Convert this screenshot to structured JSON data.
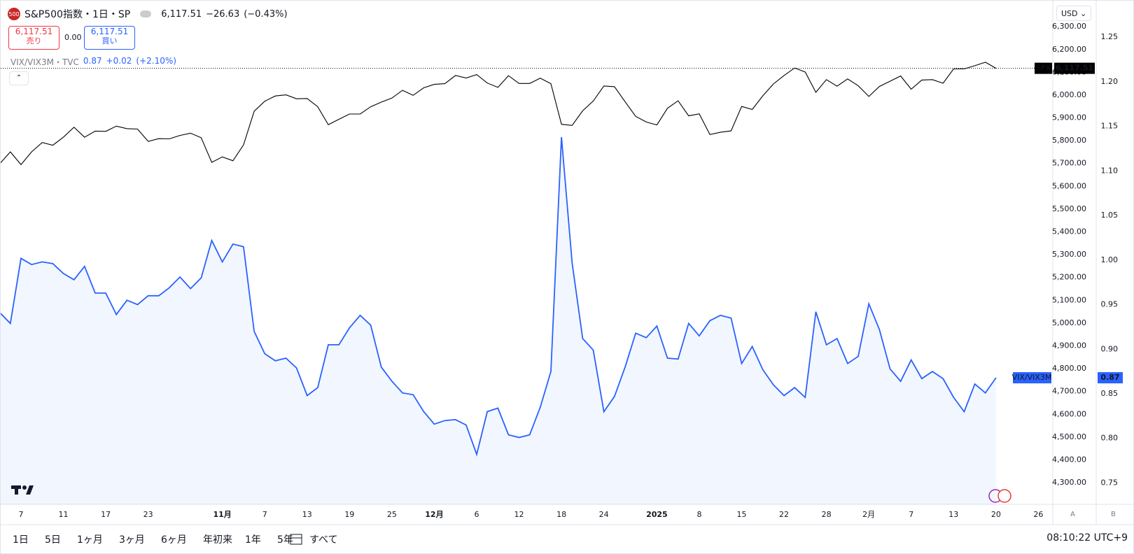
{
  "toolbar": {
    "symbol": "S&P500指数・1日・SP",
    "logo": "500",
    "price": "6,117.51",
    "change": "−26.63",
    "change_pct": "(−0.43%)",
    "sell_price": "6,117.51",
    "sell": "売り",
    "spread": "0.00",
    "buy_price": "6,117.51",
    "buy": "買い",
    "compare_symbol": "VIX/VIX3M・TVC",
    "compare_price": "0.87",
    "compare_change": "+0.02",
    "compare_change_pct": "(+2.10%)",
    "currency": "USD",
    "pane_a": "A",
    "pane_b": "B",
    "ranges": [
      "1日",
      "5日",
      "1ヶ月",
      "3ヶ月",
      "6ヶ月",
      "年初来",
      "1年",
      "5年",
      "すべて"
    ],
    "clock": "08:10:22 UTC+9"
  },
  "chart_data": {
    "type": "line",
    "categories": [
      null,
      null,
      "7",
      null,
      null,
      null,
      "11",
      null,
      null,
      null,
      "17",
      null,
      null,
      null,
      "23",
      null,
      null,
      null,
      null,
      null,
      null,
      "11月",
      null,
      null,
      null,
      "7",
      null,
      null,
      null,
      "13",
      null,
      null,
      null,
      "19",
      null,
      null,
      null,
      "25",
      null,
      null,
      null,
      "12月",
      null,
      null,
      null,
      "6",
      null,
      null,
      null,
      "12",
      null,
      null,
      null,
      "18",
      null,
      null,
      null,
      "24",
      null,
      null,
      null,
      null,
      "2025",
      null,
      null,
      null,
      "8",
      null,
      null,
      null,
      "15",
      null,
      null,
      null,
      "22",
      null,
      null,
      null,
      "28",
      null,
      null,
      null,
      "2月",
      null,
      null,
      null,
      "7",
      null,
      null,
      null,
      "13",
      null,
      null,
      null,
      "20",
      null,
      null,
      null,
      "26"
    ],
    "series": [
      {
        "name": "SPX",
        "color": "#000000",
        "last_label": "6,117.51",
        "values": [
          5699,
          5751,
          5695,
          5751,
          5792,
          5780,
          5815,
          5859,
          5815,
          5842,
          5841,
          5864,
          5853,
          5851,
          5797,
          5809,
          5808,
          5823,
          5833,
          5813,
          5705,
          5729,
          5712,
          5782,
          5929,
          5973,
          5996,
          6001,
          5984,
          5985,
          5949,
          5870,
          5894,
          5917,
          5917,
          5949,
          5969,
          5987,
          6021,
          5999,
          6032,
          6047,
          6050,
          6086,
          6075,
          6090,
          6053,
          6034,
          6085,
          6051,
          6051,
          6074,
          6050,
          5872,
          5867,
          5931,
          5974,
          6040,
          6037,
          5971,
          5907,
          5882,
          5869,
          5942,
          5975,
          5909,
          5918,
          5827,
          5837,
          5843,
          5950,
          5937,
          5997,
          6049,
          6086,
          6119,
          6101,
          6012,
          6068,
          6039,
          6071,
          6041,
          5994,
          6038,
          6061,
          6084,
          6026,
          6066,
          6068,
          6052,
          6115,
          6115,
          6129,
          6144,
          6117.51,
          null,
          null,
          null,
          null
        ]
      },
      {
        "name": "VIX/VIX3M",
        "color": "#2962ff",
        "axis": "y2",
        "last_label": "0.87",
        "values": [
          0.941,
          0.929,
          1.002,
          0.995,
          0.998,
          0.996,
          0.985,
          0.978,
          0.993,
          0.963,
          0.963,
          0.939,
          0.955,
          0.95,
          0.96,
          0.96,
          0.969,
          0.981,
          0.968,
          0.98,
          1.022,
          0.998,
          1.018,
          1.015,
          0.92,
          0.895,
          0.887,
          0.89,
          0.879,
          0.848,
          0.857,
          0.905,
          0.905,
          0.924,
          0.938,
          0.927,
          0.88,
          0.864,
          0.851,
          0.849,
          0.83,
          0.816,
          0.82,
          0.821,
          0.815,
          0.782,
          0.83,
          0.834,
          0.804,
          0.801,
          0.804,
          0.835,
          0.875,
          1.138,
          0.997,
          0.912,
          0.899,
          0.83,
          0.847,
          0.88,
          0.918,
          0.913,
          0.926,
          0.89,
          0.889,
          0.929,
          0.915,
          0.932,
          0.938,
          0.935,
          0.884,
          0.903,
          0.877,
          0.86,
          0.848,
          0.857,
          0.846,
          0.942,
          0.905,
          0.912,
          0.884,
          0.892,
          0.951,
          0.922,
          0.878,
          0.864,
          0.888,
          0.867,
          0.875,
          0.867,
          0.846,
          0.83,
          0.861,
          0.851,
          0.868,
          null,
          null,
          null,
          null
        ]
      }
    ],
    "ylim": [
      4205,
      6414
    ],
    "yticks": [
      {
        "value": 4300,
        "label": "4,300.00"
      },
      {
        "value": 4400,
        "label": "4,400.00"
      },
      {
        "value": 4500,
        "label": "4,500.00"
      },
      {
        "value": 4600,
        "label": "4,600.00"
      },
      {
        "value": 4700,
        "label": "4,700.00"
      },
      {
        "value": 4800,
        "label": "4,800.00"
      },
      {
        "value": 4900,
        "label": "4,900.00"
      },
      {
        "value": 5000,
        "label": "5,000.00"
      },
      {
        "value": 5100,
        "label": "5,100.00"
      },
      {
        "value": 5200,
        "label": "5,200.00"
      },
      {
        "value": 5300,
        "label": "5,300.00"
      },
      {
        "value": 5400,
        "label": "5,400.00"
      },
      {
        "value": 5500,
        "label": "5,500.00"
      },
      {
        "value": 5600,
        "label": "5,600.00"
      },
      {
        "value": 5700,
        "label": "5,700.00"
      },
      {
        "value": 5800,
        "label": "5,800.00"
      },
      {
        "value": 5900,
        "label": "5,900.00"
      },
      {
        "value": 6000,
        "label": "6,000.00"
      },
      {
        "value": 6100,
        "label": "6,100.00"
      },
      {
        "value": 6200,
        "label": "6,200.00"
      },
      {
        "value": 6300,
        "label": "6,300.00"
      }
    ],
    "y2lim": [
      0.726,
      1.291
    ],
    "y2ticks": [
      0.75,
      {
        "value": 0.8,
        "label": "0.80"
      },
      0.85,
      {
        "value": 0.9,
        "label": "0.90"
      },
      0.95,
      {
        "value": 1,
        "label": "1.00"
      },
      1.05,
      {
        "value": 1.1,
        "label": "1.10"
      },
      1.15,
      {
        "value": 1.2,
        "label": "1.20"
      },
      1.25
    ],
    "grid": false
  }
}
